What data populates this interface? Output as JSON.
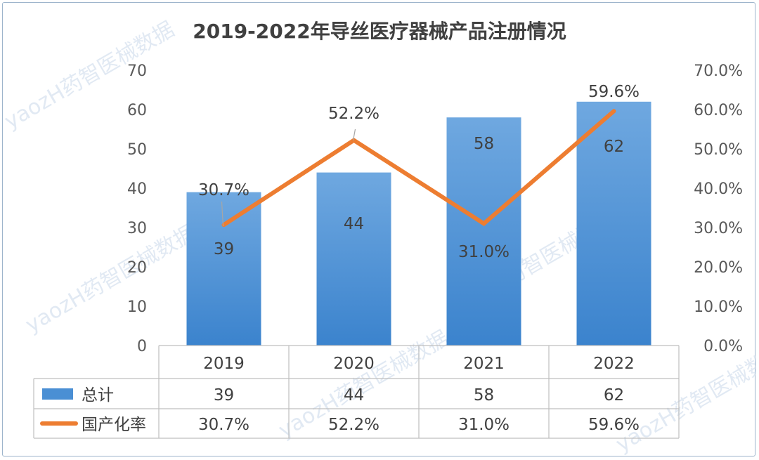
{
  "chart_data": {
    "type": "bar",
    "title": "2019-2022年导丝医疗器械产品注册情况",
    "categories": [
      "2019",
      "2020",
      "2021",
      "2022"
    ],
    "series": [
      {
        "name": "总计",
        "type": "bar",
        "axis": "left",
        "values": [
          39,
          44,
          58,
          62
        ],
        "labels": [
          "39",
          "44",
          "58",
          "62"
        ],
        "color": "#4a8fd4"
      },
      {
        "name": "国产化率",
        "type": "line",
        "axis": "right",
        "values": [
          30.7,
          52.2,
          31.0,
          59.6
        ],
        "labels": [
          "30.7%",
          "52.2%",
          "31.0%",
          "59.6%"
        ],
        "color": "#ed7d31"
      }
    ],
    "y_left": {
      "min": 0,
      "max": 70,
      "step": 10,
      "ticks": [
        "0",
        "10",
        "20",
        "30",
        "40",
        "50",
        "60",
        "70"
      ]
    },
    "y_right": {
      "min": 0,
      "max": 70,
      "step": 10,
      "ticks": [
        "0.0%",
        "10.0%",
        "20.0%",
        "30.0%",
        "40.0%",
        "50.0%",
        "60.0%",
        "70.0%"
      ]
    },
    "grid": false,
    "data_table": true,
    "watermark": [
      "yaozH药智医械数据",
      "yaozH药智医械数据",
      "yaozH药智医械数据",
      "yaozH药智医械数据"
    ]
  }
}
